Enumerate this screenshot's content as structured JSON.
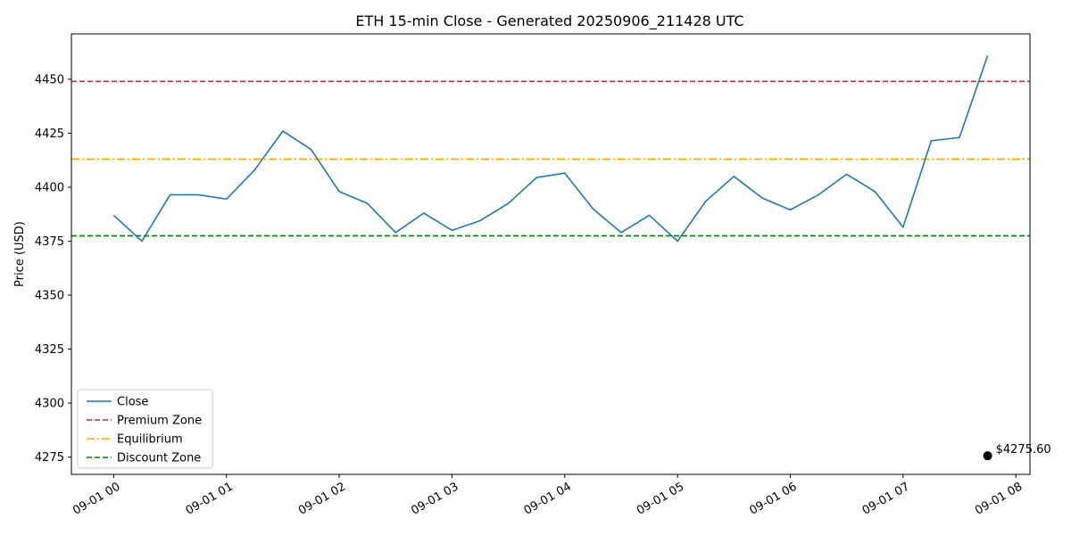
{
  "chart_data": {
    "type": "line",
    "title": "ETH 15-min Close - Generated 20250906_211428 UTC",
    "xlabel": "",
    "ylabel": "Price (USD)",
    "ylim": [
      4267,
      4471
    ],
    "xlim_hours": [
      -0.375,
      8.125
    ],
    "yticks": [
      4275,
      4300,
      4325,
      4350,
      4375,
      4400,
      4425,
      4450
    ],
    "xticks": [
      {
        "hour": 0,
        "label": "09-01 00"
      },
      {
        "hour": 1,
        "label": "09-01 01"
      },
      {
        "hour": 2,
        "label": "09-01 02"
      },
      {
        "hour": 3,
        "label": "09-01 03"
      },
      {
        "hour": 4,
        "label": "09-01 04"
      },
      {
        "hour": 5,
        "label": "09-01 05"
      },
      {
        "hour": 6,
        "label": "09-01 06"
      },
      {
        "hour": 7,
        "label": "09-01 07"
      },
      {
        "hour": 8,
        "label": "09-01 08"
      }
    ],
    "series": [
      {
        "name": "Close",
        "color": "#1f77b4",
        "x_hours": [
          0,
          0.25,
          0.5,
          0.75,
          1,
          1.25,
          1.5,
          1.75,
          2,
          2.25,
          2.5,
          2.75,
          3,
          3.25,
          3.5,
          3.75,
          4,
          4.25,
          4.5,
          4.75,
          5,
          5.25,
          5.5,
          5.75,
          6,
          6.25,
          6.5,
          6.75,
          7,
          7.25,
          7.5,
          7.75
        ],
        "values": [
          4387,
          4375,
          4396.5,
          4396.5,
          4394.5,
          4408,
          4426,
          4417.5,
          4398,
          4392.5,
          4379,
          4388,
          4380,
          4384.5,
          4392.5,
          4404.5,
          4406.5,
          4390,
          4379,
          4387,
          4375,
          4393.5,
          4405,
          4395,
          4389.5,
          4396.5,
          4406,
          4398,
          4381.5,
          4421.5,
          4423,
          4461
        ]
      }
    ],
    "hlines": [
      {
        "name": "Premium Zone",
        "value": 4449,
        "color": "#d62728",
        "style": "dashed"
      },
      {
        "name": "Equilibrium",
        "value": 4413,
        "color": "#ffa500",
        "style": "dashdot"
      },
      {
        "name": "Discount Zone",
        "value": 4377.5,
        "color": "#008000",
        "style": "dashed"
      }
    ],
    "marker": {
      "x_hour": 7.75,
      "value": 4275.6,
      "label": "$4275.60",
      "color": "#000000"
    },
    "legend": {
      "position": "lower-left",
      "entries": [
        "Close",
        "Premium Zone",
        "Equilibrium",
        "Discount Zone"
      ]
    }
  }
}
